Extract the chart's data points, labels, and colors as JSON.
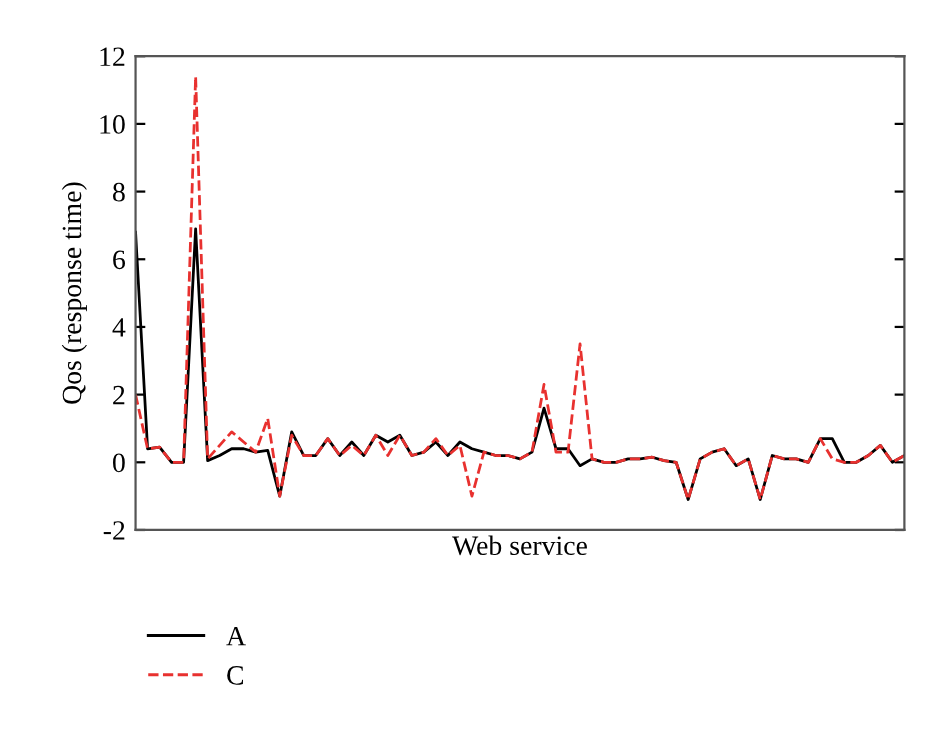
{
  "chart_data": {
    "type": "line",
    "xlabel": "Web service",
    "ylabel": "Qos (response time)",
    "categories": [
      null,
      null,
      null,
      null,
      null,
      null,
      null,
      null,
      null,
      null,
      null,
      null,
      null,
      null,
      null,
      null,
      null,
      null,
      null,
      null,
      null,
      null,
      null,
      null,
      null,
      null,
      null,
      null,
      null,
      null,
      null,
      null,
      null,
      null,
      null,
      null,
      null,
      null,
      null,
      null,
      null,
      null,
      null,
      null,
      null,
      null,
      null,
      null,
      null,
      null,
      null,
      null,
      null,
      null,
      null,
      null,
      null,
      null,
      null,
      null,
      null,
      null,
      null,
      null,
      null
    ],
    "series": [
      {
        "name": "A",
        "color": "#000000",
        "line_style": "solid",
        "values": [
          6.8,
          0.4,
          0.45,
          0.0,
          0.0,
          6.9,
          0.05,
          0.2,
          0.4,
          0.4,
          0.3,
          0.35,
          -1.0,
          0.9,
          0.2,
          0.2,
          0.7,
          0.2,
          0.6,
          0.2,
          0.8,
          0.6,
          0.8,
          0.2,
          0.3,
          0.6,
          0.2,
          0.6,
          0.4,
          0.3,
          0.2,
          0.2,
          0.1,
          0.3,
          1.6,
          0.4,
          0.4,
          -0.1,
          0.1,
          0.0,
          0.0,
          0.1,
          0.1,
          0.15,
          0.05,
          0.0,
          -1.1,
          0.1,
          0.3,
          0.4,
          -0.1,
          0.1,
          -1.1,
          0.2,
          0.1,
          0.1,
          0.0,
          0.7,
          0.7,
          0.0,
          0.0,
          0.2,
          0.5,
          0.0,
          0.2
        ]
      },
      {
        "name": "C",
        "color": "#e8312f",
        "line_style": "dashed",
        "values": [
          2.0,
          0.4,
          0.45,
          0.0,
          0.0,
          11.4,
          0.1,
          0.5,
          0.9,
          0.6,
          0.3,
          1.3,
          -1.0,
          0.8,
          0.2,
          0.2,
          0.7,
          0.2,
          0.5,
          0.2,
          0.8,
          0.2,
          0.8,
          0.2,
          0.3,
          0.7,
          0.2,
          0.5,
          -1.0,
          0.3,
          0.2,
          0.2,
          0.1,
          0.3,
          2.3,
          0.3,
          0.3,
          3.5,
          0.1,
          0.0,
          0.0,
          0.1,
          0.1,
          0.15,
          0.05,
          0.0,
          -1.1,
          0.1,
          0.3,
          0.4,
          -0.1,
          0.1,
          -1.1,
          0.2,
          0.1,
          0.1,
          0.0,
          0.7,
          0.1,
          0.0,
          0.0,
          0.2,
          0.5,
          0.0,
          0.2
        ]
      }
    ],
    "ylim": [
      -2,
      12
    ],
    "yticks": [
      -2,
      0,
      2,
      4,
      6,
      8,
      10,
      12
    ],
    "grid": false,
    "legend": "bottom left",
    "tick_labels": "y"
  }
}
